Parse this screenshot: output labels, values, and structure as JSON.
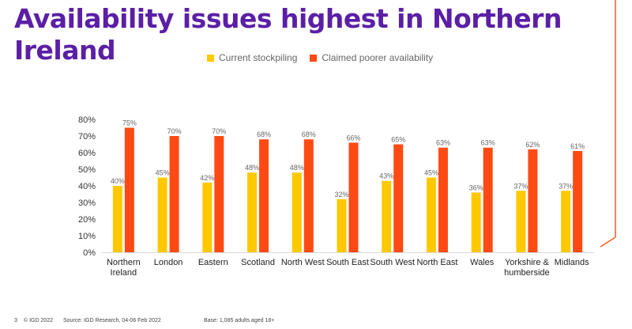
{
  "title_line1": "Availability issues highest in Northern",
  "title_line2": "Ireland",
  "colors": {
    "title": "#5b1fa6",
    "stockpiling": "#ffc800",
    "availability": "#ff4a14",
    "accent_line": "#ff5a1f"
  },
  "footer": {
    "page": "3",
    "copyright": "© IGD 2022",
    "source": "Source: IGD Research, 04-06 Feb 2022",
    "base": "Base: 1,085 adults aged 18+"
  },
  "chart_data": {
    "type": "bar",
    "title": "",
    "xlabel": "",
    "ylabel": "",
    "ylim": [
      0,
      80
    ],
    "yticks": [
      "0%",
      "10%",
      "20%",
      "30%",
      "40%",
      "50%",
      "60%",
      "70%",
      "80%"
    ],
    "legend_position": "top",
    "grid": false,
    "categories": [
      [
        "Northern",
        "Ireland"
      ],
      [
        "London"
      ],
      [
        "Eastern"
      ],
      [
        "Scotland"
      ],
      [
        "North West"
      ],
      [
        "South East"
      ],
      [
        "South West"
      ],
      [
        "North East"
      ],
      [
        "Wales"
      ],
      [
        "Yorkshire &",
        "humberside"
      ],
      [
        "Midlands"
      ]
    ],
    "series": [
      {
        "name": "Current stockpiling",
        "values": [
          40,
          45,
          42,
          48,
          48,
          32,
          43,
          45,
          36,
          37,
          37
        ],
        "labels": [
          "40%",
          "45%",
          "42%",
          "48%",
          "48%",
          "32%",
          "43%",
          "45%",
          "36%",
          "37%",
          "37%"
        ]
      },
      {
        "name": "Claimed poorer availability",
        "values": [
          75,
          70,
          70,
          68,
          68,
          66,
          65,
          63,
          63,
          62,
          61
        ],
        "labels": [
          "75%",
          "70%",
          "70%",
          "68%",
          "68%",
          "66%",
          "65%",
          "63%",
          "63%",
          "62%",
          "61%"
        ]
      }
    ]
  }
}
